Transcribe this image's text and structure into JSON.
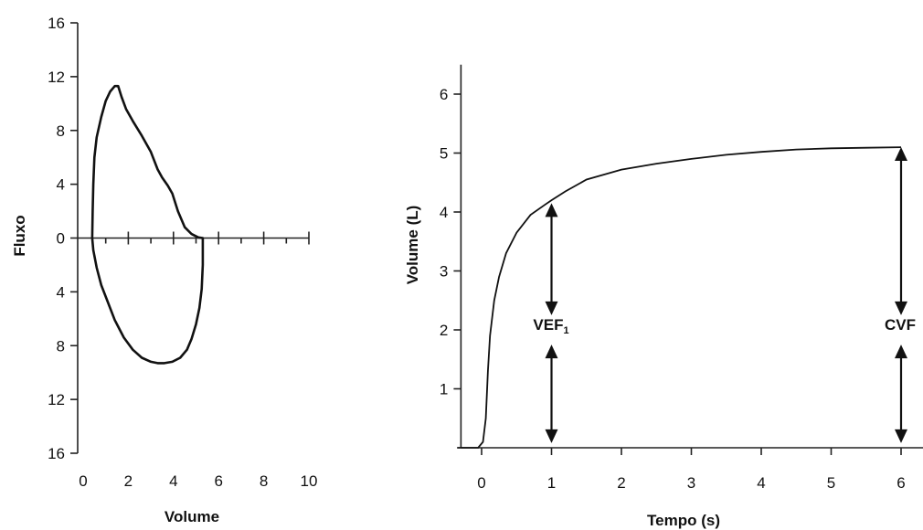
{
  "chart_data": [
    {
      "type": "line",
      "title": "",
      "xlabel": "Volume",
      "ylabel": "Fluxo",
      "xlim": [
        0,
        10
      ],
      "ylim": [
        -16,
        16
      ],
      "x_ticks": [
        0,
        2,
        4,
        6,
        8,
        10
      ],
      "y_ticks": [
        16,
        12,
        8,
        4,
        0,
        -4,
        -8,
        -12,
        -16
      ],
      "y_tick_labels": [
        "16",
        "12",
        "8",
        "4",
        "0",
        "4",
        "8",
        "12",
        "16"
      ],
      "grid": false,
      "series": [
        {
          "x": [
            0.4,
            0.42,
            0.45,
            0.5,
            0.6,
            0.8,
            1.0,
            1.2,
            1.4,
            1.55,
            1.7,
            1.9,
            2.2,
            2.6,
            3.0,
            3.3,
            3.5,
            3.75,
            3.95,
            4.2,
            4.5,
            4.8,
            5.1,
            5.3,
            5.3,
            5.3,
            5.25,
            5.15,
            5.0,
            4.8,
            4.6,
            4.3,
            3.95,
            3.6,
            3.3,
            3.0,
            2.6,
            2.2,
            1.8,
            1.4,
            1.1,
            0.8,
            0.6,
            0.45,
            0.4
          ],
          "y": [
            0,
            2,
            4,
            6,
            7.5,
            9,
            10.2,
            10.9,
            11.3,
            11.3,
            10.5,
            9.6,
            8.7,
            7.6,
            6.4,
            5.1,
            4.5,
            3.9,
            3.3,
            2.0,
            0.8,
            0.3,
            0.05,
            0,
            -0.5,
            -2.0,
            -3.8,
            -5.2,
            -6.4,
            -7.5,
            -8.3,
            -8.9,
            -9.2,
            -9.3,
            -9.3,
            -9.2,
            -8.9,
            -8.3,
            -7.4,
            -6.1,
            -4.8,
            -3.5,
            -2.2,
            -0.9,
            0
          ]
        }
      ]
    },
    {
      "type": "line",
      "title": "",
      "xlabel": "Tempo (s)",
      "ylabel": "Volume (L)",
      "xlim": [
        -0.4,
        6.4
      ],
      "ylim": [
        0,
        6.5
      ],
      "x_ticks": [
        0,
        1,
        2,
        3,
        4,
        5,
        6
      ],
      "y_ticks": [
        1,
        2,
        3,
        4,
        5,
        6
      ],
      "grid": false,
      "series": [
        {
          "x": [
            -0.35,
            -0.05,
            0.02,
            0.06,
            0.09,
            0.12,
            0.18,
            0.25,
            0.35,
            0.5,
            0.7,
            0.9,
            1.0,
            1.2,
            1.5,
            2.0,
            2.5,
            3.0,
            3.5,
            4.0,
            4.5,
            5.0,
            5.5,
            6.0
          ],
          "y": [
            0,
            0,
            0.1,
            0.5,
            1.3,
            1.9,
            2.5,
            2.9,
            3.3,
            3.65,
            3.95,
            4.12,
            4.2,
            4.35,
            4.55,
            4.72,
            4.82,
            4.9,
            4.97,
            5.02,
            5.06,
            5.08,
            5.09,
            5.1
          ]
        }
      ],
      "annotations": [
        {
          "text": "VEF",
          "subscript": "1",
          "x": 1
        },
        {
          "text": "CVF",
          "x": 6
        }
      ],
      "arrows": [
        {
          "x": 1,
          "y_from": 4.15,
          "y_to": 2.25
        },
        {
          "x": 1,
          "y_from": 1.75,
          "y_to": 0.08
        },
        {
          "x": 6,
          "y_from": 5.1,
          "y_to": 2.25
        },
        {
          "x": 6,
          "y_from": 1.75,
          "y_to": 0.08
        }
      ]
    }
  ]
}
